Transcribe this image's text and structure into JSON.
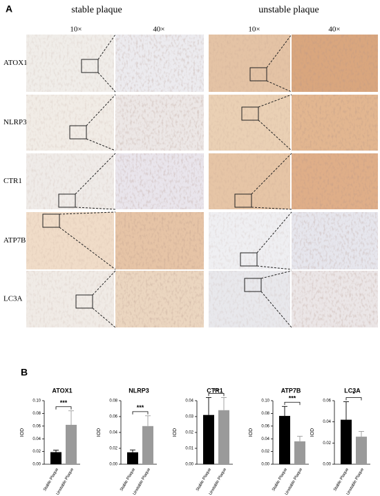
{
  "panel_a": {
    "label": "A",
    "groups": [
      "stable plaque",
      "unstable plaque"
    ],
    "magnifications": [
      "10×",
      "40×",
      "10×",
      "40×"
    ],
    "rows": [
      "ATOX1",
      "NLRP3",
      "CTR1",
      "ATP7B",
      "LC3A"
    ]
  },
  "panel_b": {
    "label": "B"
  },
  "chart_data": [
    {
      "type": "bar",
      "title": "ATOX1",
      "ylabel": "IOD",
      "categories": [
        "Stable Plaque",
        "Unstable Plaque"
      ],
      "values": [
        0.019,
        0.062
      ],
      "errors": [
        0.003,
        0.022
      ],
      "colors": [
        "#000000",
        "#9a9a9a"
      ],
      "significance": "***",
      "ylim": [
        0,
        0.1
      ],
      "yticks": [
        {
          "value": 0,
          "label": "0.00"
        },
        {
          "value": 0.02,
          "label": "0.02"
        },
        {
          "value": 0.04,
          "label": "0.04"
        },
        {
          "value": 0.06,
          "label": "0.06"
        },
        {
          "value": 0.08,
          "label": "0.08"
        },
        {
          "value": 0.1,
          "label": "0.10"
        }
      ]
    },
    {
      "type": "bar",
      "title": "NLRP3",
      "ylabel": "IOD",
      "categories": [
        "Stable Plaque",
        "Unstable Plaque"
      ],
      "values": [
        0.015,
        0.048
      ],
      "errors": [
        0.003,
        0.013
      ],
      "colors": [
        "#000000",
        "#9a9a9a"
      ],
      "significance": "***",
      "ylim": [
        0,
        0.08
      ],
      "yticks": [
        {
          "value": 0,
          "label": "0.00"
        },
        {
          "value": 0.02,
          "label": "0.02"
        },
        {
          "value": 0.04,
          "label": "0.04"
        },
        {
          "value": 0.06,
          "label": "0.06"
        },
        {
          "value": 0.08,
          "label": "0.08"
        }
      ]
    },
    {
      "type": "bar",
      "title": "CTR1",
      "ylabel": "IOD",
      "categories": [
        "Stable Plaque",
        "Unstable Plaque"
      ],
      "values": [
        0.031,
        0.034
      ],
      "errors": [
        0.011,
        0.008
      ],
      "colors": [
        "#000000",
        "#9a9a9a"
      ],
      "significance": "ns",
      "ylim": [
        0,
        0.04
      ],
      "yticks": [
        {
          "value": 0,
          "label": "0.00"
        },
        {
          "value": 0.01,
          "label": "0.01"
        },
        {
          "value": 0.02,
          "label": "0.02"
        },
        {
          "value": 0.03,
          "label": "0.03"
        },
        {
          "value": 0.04,
          "label": "0.04"
        }
      ]
    },
    {
      "type": "bar",
      "title": "ATP7B",
      "ylabel": "IOD",
      "categories": [
        "Stable Plaque",
        "Unstable Plaque"
      ],
      "values": [
        0.076,
        0.036
      ],
      "errors": [
        0.015,
        0.008
      ],
      "colors": [
        "#000000",
        "#9a9a9a"
      ],
      "significance": "***",
      "ylim": [
        0,
        0.1
      ],
      "yticks": [
        {
          "value": 0,
          "label": "0.00"
        },
        {
          "value": 0.02,
          "label": "0.02"
        },
        {
          "value": 0.04,
          "label": "0.04"
        },
        {
          "value": 0.06,
          "label": "0.06"
        },
        {
          "value": 0.08,
          "label": "0.08"
        },
        {
          "value": 0.1,
          "label": "0.10"
        }
      ]
    },
    {
      "type": "bar",
      "title": "LC3A",
      "ylabel": "IOD",
      "categories": [
        "Stable Plaque",
        "Unstable Plaque"
      ],
      "values": [
        0.042,
        0.026
      ],
      "errors": [
        0.017,
        0.005
      ],
      "colors": [
        "#000000",
        "#9a9a9a"
      ],
      "significance": "*",
      "ylim": [
        0,
        0.06
      ],
      "yticks": [
        {
          "value": 0,
          "label": "0.00"
        },
        {
          "value": 0.02,
          "label": "0.02"
        },
        {
          "value": 0.04,
          "label": "0.04"
        },
        {
          "value": 0.06,
          "label": "0.06"
        }
      ]
    }
  ]
}
